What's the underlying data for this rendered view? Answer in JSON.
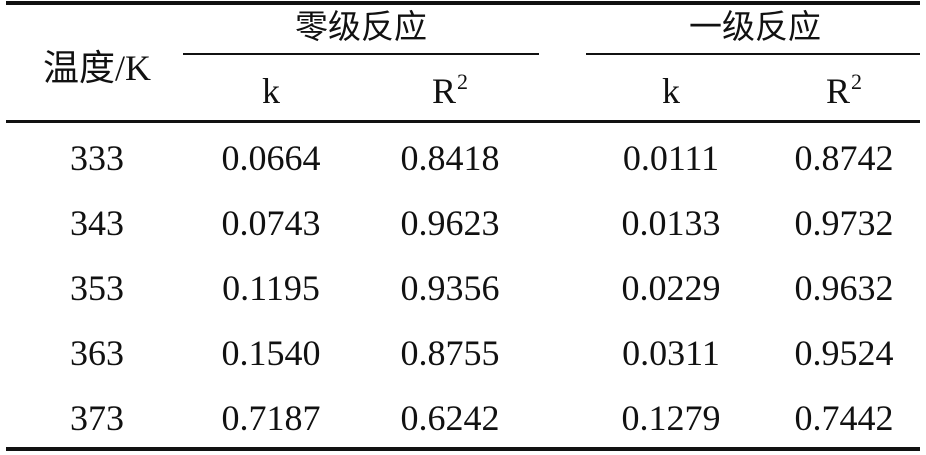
{
  "table": {
    "headers": {
      "temperature": "温度/K",
      "zero_order": "零级反应",
      "first_order": "一级反应",
      "k": "k",
      "r_base": "R",
      "r_exp": "2"
    },
    "rows": [
      {
        "t": "333",
        "k0": "0.0664",
        "r0": "0.8418",
        "k1": "0.0111",
        "r1": "0.8742"
      },
      {
        "t": "343",
        "k0": "0.0743",
        "r0": "0.9623",
        "k1": "0.0133",
        "r1": "0.9732"
      },
      {
        "t": "353",
        "k0": "0.1195",
        "r0": "0.9356",
        "k1": "0.0229",
        "r1": "0.9632"
      },
      {
        "t": "363",
        "k0": "0.1540",
        "r0": "0.8755",
        "k1": "0.0311",
        "r1": "0.9524"
      },
      {
        "t": "373",
        "k0": "0.7187",
        "r0": "0.6242",
        "k1": "0.1279",
        "r1": "0.7442"
      }
    ]
  }
}
